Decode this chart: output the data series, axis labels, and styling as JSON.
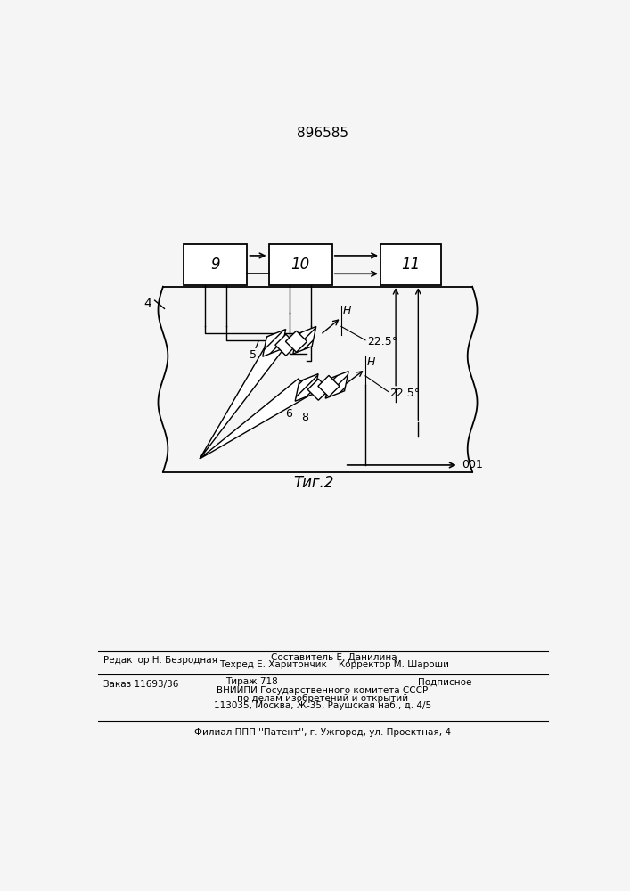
{
  "patent_number": "896585",
  "fig_label": "Τиг.2",
  "bg_color": "#f5f5f5",
  "box9_label": "9",
  "box10_label": "10",
  "box11_label": "11",
  "label_4": "4",
  "label_5": "5",
  "label_6": "6",
  "label_7": "7",
  "label_8": "8",
  "label_H1": "H",
  "label_H2": "H",
  "label_22_5_1": "22.5°",
  "label_22_5_2": "22.5°",
  "label_001": "001",
  "editor_line": "Редактор Н. Безродная",
  "compiler_line": "Составитель Е. Данилина",
  "techred_korr_line": "Техред Е. Харитончик    Корректор М. Шароши",
  "order_line": "Заказ 11693/36",
  "tirazh_line": "Тираж 718",
  "podpisnoe_line": "Подписное",
  "vniipи_line": "ВНИИПИ Государственного комитета СССР",
  "po_delam_line": "по делам изобретений и открытий",
  "address_line": "113035, Москва, Ж-35, Раушская наб., д. 4/5",
  "filial_line": "Филиал ППП ''Патент'', г. Ужгород, ул. Проектная, 4"
}
